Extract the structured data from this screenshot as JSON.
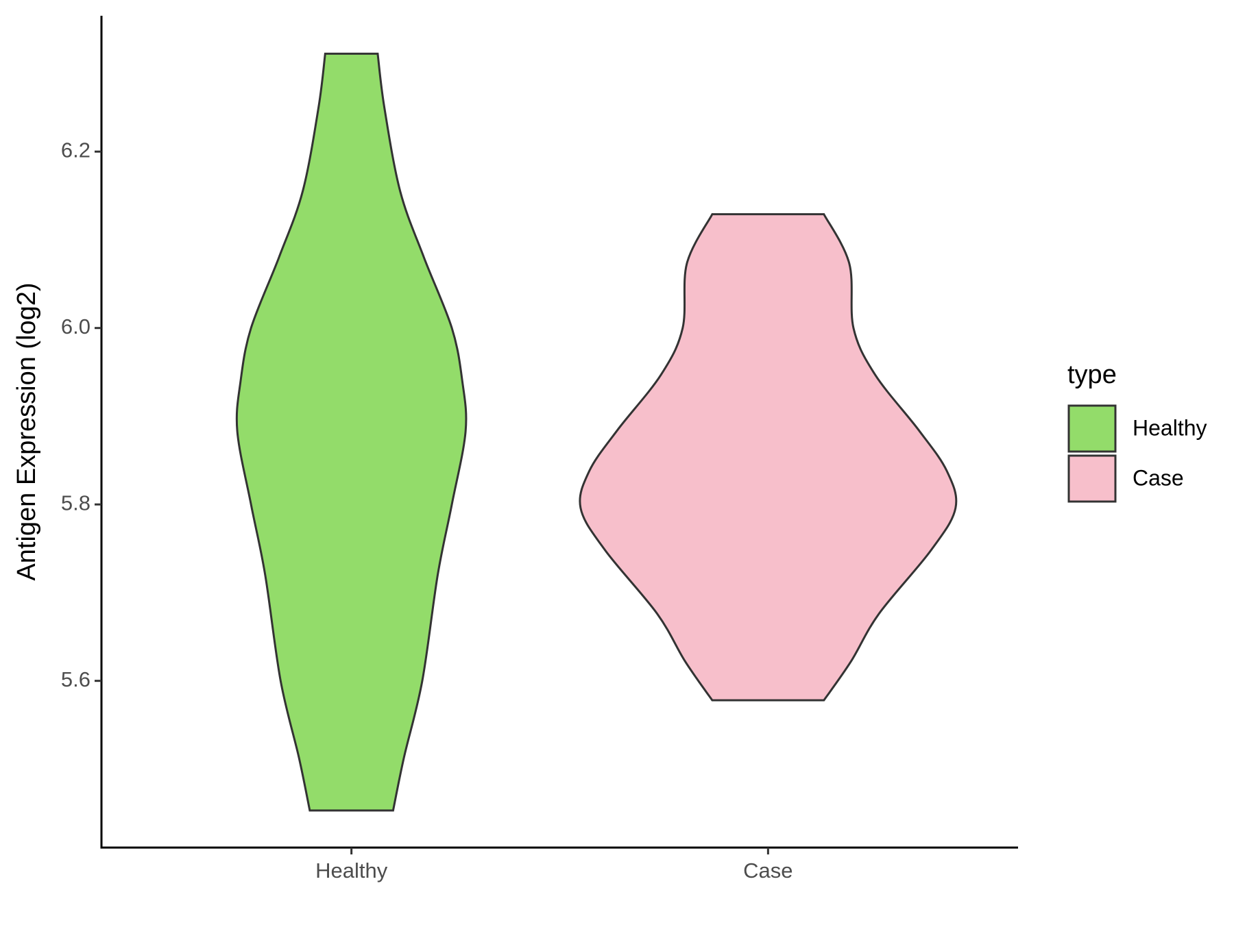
{
  "chart_data": {
    "type": "violin",
    "y_label": "Antigen Expression (log2)",
    "categories": [
      "Healthy",
      "Case"
    ],
    "legend_title": "type",
    "legend_position": "right",
    "ylim": [
      5.411,
      6.354
    ],
    "yticks": [
      {
        "value": 5.6,
        "label": "5.6"
      },
      {
        "value": 5.8,
        "label": "5.8"
      },
      {
        "value": 6.0,
        "label": "6.0"
      },
      {
        "value": 6.2,
        "label": "6.2"
      }
    ],
    "series": [
      {
        "name": "Healthy",
        "color": "#93dc6a",
        "y": [
          6.311,
          6.25,
          6.155,
          6.08,
          6.0,
          5.94,
          5.883,
          5.8,
          5.72,
          5.6,
          5.513,
          5.453
        ],
        "half_widths": [
          0.063,
          0.079,
          0.117,
          0.174,
          0.241,
          0.266,
          0.274,
          0.241,
          0.207,
          0.17,
          0.126,
          0.1
        ]
      },
      {
        "name": "Case",
        "color": "#f7bfcb",
        "y": [
          6.129,
          6.073,
          6.0,
          5.947,
          5.884,
          5.838,
          5.796,
          5.748,
          5.676,
          5.622,
          5.578
        ],
        "half_widths": [
          0.134,
          0.195,
          0.205,
          0.257,
          0.362,
          0.429,
          0.45,
          0.391,
          0.266,
          0.199,
          0.134
        ]
      }
    ]
  }
}
